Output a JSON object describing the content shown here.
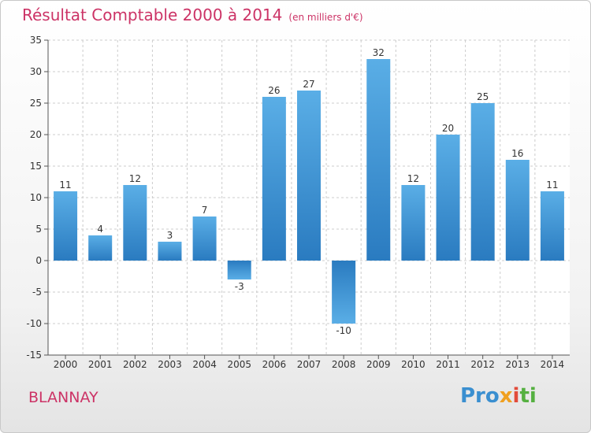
{
  "header": {
    "title": "Résultat Comptable 2000 à 2014",
    "unit": "(en milliers d'€)"
  },
  "footer": {
    "town": "BLANNAY",
    "logo": {
      "p1": "Pro",
      "p2": "x",
      "p3": "i",
      "p4": "ti"
    }
  },
  "colors": {
    "title": "#cc3366",
    "bar_top": "#5aaee6",
    "bar_bottom": "#2a7bc0",
    "grid": "#cccccc"
  },
  "chart_data": {
    "type": "bar",
    "title": "Résultat Comptable 2000 à 2014",
    "categories": [
      "2000",
      "2001",
      "2002",
      "2003",
      "2004",
      "2005",
      "2006",
      "2007",
      "2008",
      "2009",
      "2010",
      "2011",
      "2012",
      "2013",
      "2014"
    ],
    "values": [
      11,
      4,
      12,
      3,
      7,
      -3,
      26,
      27,
      -10,
      32,
      12,
      20,
      25,
      16,
      11
    ],
    "ylim": [
      -15,
      35
    ],
    "yticks": [
      35,
      30,
      25,
      20,
      15,
      10,
      5,
      0,
      -5,
      -10,
      -15
    ],
    "grid": true,
    "data_labels": true
  }
}
